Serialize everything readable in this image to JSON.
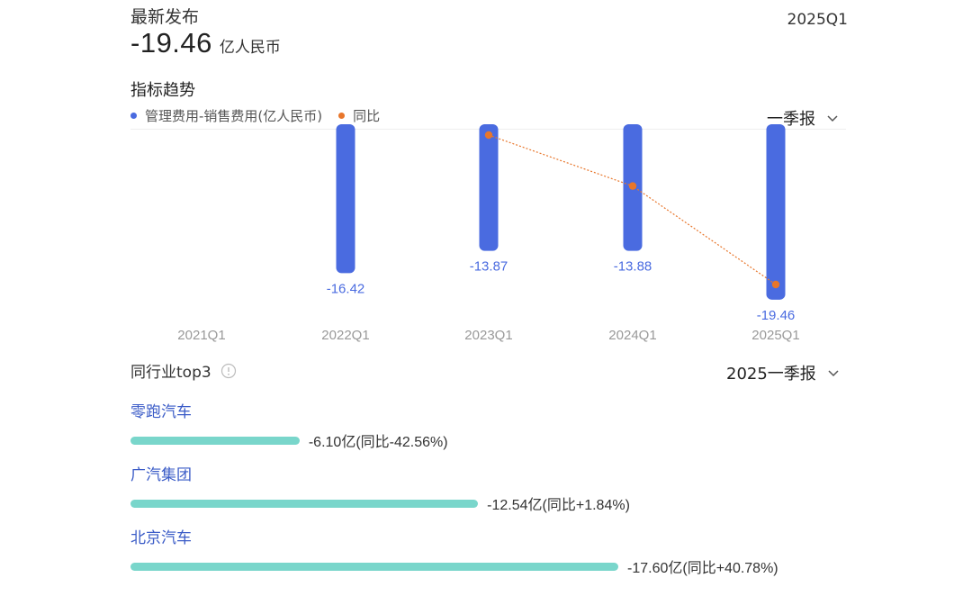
{
  "header": {
    "latest_label": "最新发布",
    "latest_value": "-19.46",
    "latest_unit": "亿人民币",
    "period": "2025Q1"
  },
  "trend": {
    "title": "指标趋势",
    "period_selector": "一季报",
    "legend": [
      {
        "label": "管理费用-销售费用(亿人民币)",
        "color": "#4a6be0"
      },
      {
        "label": "同比",
        "color": "#e8762b"
      }
    ]
  },
  "chart_data": {
    "type": "bar",
    "categories": [
      "2021Q1",
      "2022Q1",
      "2023Q1",
      "2024Q1",
      "2025Q1"
    ],
    "series": [
      {
        "name": "管理费用-销售费用(亿人民币)",
        "values": [
          null,
          -16.42,
          -13.87,
          -13.88,
          -19.46
        ],
        "labels": [
          "",
          "-16.42",
          "-13.87",
          "-13.88",
          "-19.46"
        ],
        "color": "#4a6be0"
      },
      {
        "name": "同比",
        "type": "line",
        "values": [
          null,
          null,
          0.95,
          0.66,
          0.1
        ],
        "color": "#e8762b"
      }
    ],
    "ylim": [
      -20.2,
      0
    ]
  },
  "peers": {
    "title": "同行业top3",
    "period_selector": "2025一季报",
    "items": [
      {
        "name": "零跑汽车",
        "value_text": "-6.10亿(同比-42.56%)",
        "value": -6.1
      },
      {
        "name": "广汽集团",
        "value_text": "-12.54亿(同比+1.84%)",
        "value": -12.54
      },
      {
        "name": "北京汽车",
        "value_text": "-17.60亿(同比+40.78%)",
        "value": -17.6
      }
    ]
  }
}
